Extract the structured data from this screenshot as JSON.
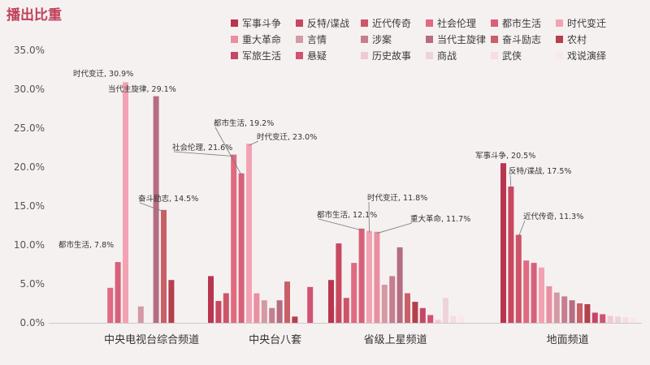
{
  "chart_data": {
    "type": "bar",
    "title": "播出比重",
    "ylim": [
      0,
      35
    ],
    "yticks": [
      "0.0%",
      "5.0%",
      "10.0%",
      "15.0%",
      "20.0%",
      "25.0%",
      "30.0%",
      "35.0%"
    ],
    "categories": [
      "中央电视台综合频道",
      "中央台八套",
      "省级上星频道",
      "地面频道"
    ],
    "series": [
      {
        "name": "军事斗争",
        "color": "#b83550",
        "values": [
          0,
          6.0,
          5.5,
          20.5
        ]
      },
      {
        "name": "反特/谍战",
        "color": "#c8485f",
        "values": [
          0,
          2.8,
          10.2,
          17.5
        ]
      },
      {
        "name": "近代传奇",
        "color": "#cc5567",
        "values": [
          0,
          3.8,
          3.2,
          11.3
        ]
      },
      {
        "name": "社会伦理",
        "color": "#e06a80",
        "values": [
          4.5,
          21.6,
          7.7,
          8.0
        ]
      },
      {
        "name": "都市生活",
        "color": "#d7607a",
        "values": [
          7.8,
          19.2,
          12.1,
          7.7
        ]
      },
      {
        "name": "时代变迁",
        "color": "#f2a3b3",
        "values": [
          30.9,
          23.0,
          11.8,
          7.1
        ]
      },
      {
        "name": "重大革命",
        "color": "#ea8fa1",
        "values": [
          0,
          3.8,
          11.7,
          4.7
        ]
      },
      {
        "name": "言情",
        "color": "#d39aa5",
        "values": [
          2.1,
          2.9,
          4.9,
          3.9
        ]
      },
      {
        "name": "涉案",
        "color": "#c67e8e",
        "values": [
          0,
          1.9,
          6.0,
          3.4
        ]
      },
      {
        "name": "当代主旋律",
        "color": "#b56d82",
        "values": [
          29.1,
          2.9,
          9.7,
          2.9
        ]
      },
      {
        "name": "奋斗励志",
        "color": "#c96068",
        "values": [
          14.5,
          5.3,
          3.8,
          2.5
        ]
      },
      {
        "name": "农村",
        "color": "#b4404b",
        "values": [
          5.5,
          0.8,
          2.7,
          2.4
        ]
      },
      {
        "name": "军旅生活",
        "color": "#c44766",
        "values": [
          0,
          0,
          1.9,
          1.3
        ]
      },
      {
        "name": "悬疑",
        "color": "#d15273",
        "values": [
          0,
          4.6,
          1.0,
          1.1
        ]
      },
      {
        "name": "历史故事",
        "color": "#f0cad2",
        "values": [
          0,
          0,
          0.4,
          0.9
        ]
      },
      {
        "name": "商战",
        "color": "#efd3da",
        "values": [
          0,
          0,
          3.2,
          0.8
        ]
      },
      {
        "name": "武侠",
        "color": "#f5dde2",
        "values": [
          0,
          2.0,
          0.9,
          0.7
        ]
      },
      {
        "name": "戏说演绎",
        "color": "#f7e8ec",
        "values": [
          0,
          0,
          1.0,
          0.6
        ]
      }
    ],
    "annotations": [
      {
        "group": 0,
        "series": 4,
        "text": "都市生活, 7.8%"
      },
      {
        "group": 0,
        "series": 5,
        "text": "时代变迁, 30.9%"
      },
      {
        "group": 0,
        "series": 9,
        "text": "当代主旋律, 29.1%"
      },
      {
        "group": 0,
        "series": 10,
        "text": "奋斗励志, 14.5%"
      },
      {
        "group": 1,
        "series": 3,
        "text": "社会伦理, 21.6%"
      },
      {
        "group": 1,
        "series": 4,
        "text": "都市生活, 19.2%"
      },
      {
        "group": 1,
        "series": 5,
        "text": "时代变迁, 23.0%"
      },
      {
        "group": 2,
        "series": 4,
        "text": "都市生活, 12.1%"
      },
      {
        "group": 2,
        "series": 5,
        "text": "时代变迁, 11.8%"
      },
      {
        "group": 2,
        "series": 6,
        "text": "重大革命, 11.7%"
      },
      {
        "group": 3,
        "series": 0,
        "text": "军事斗争, 20.5%"
      },
      {
        "group": 3,
        "series": 1,
        "text": "反特/谍战, 17.5%"
      },
      {
        "group": 3,
        "series": 2,
        "text": "近代传奇, 11.3%"
      }
    ]
  }
}
